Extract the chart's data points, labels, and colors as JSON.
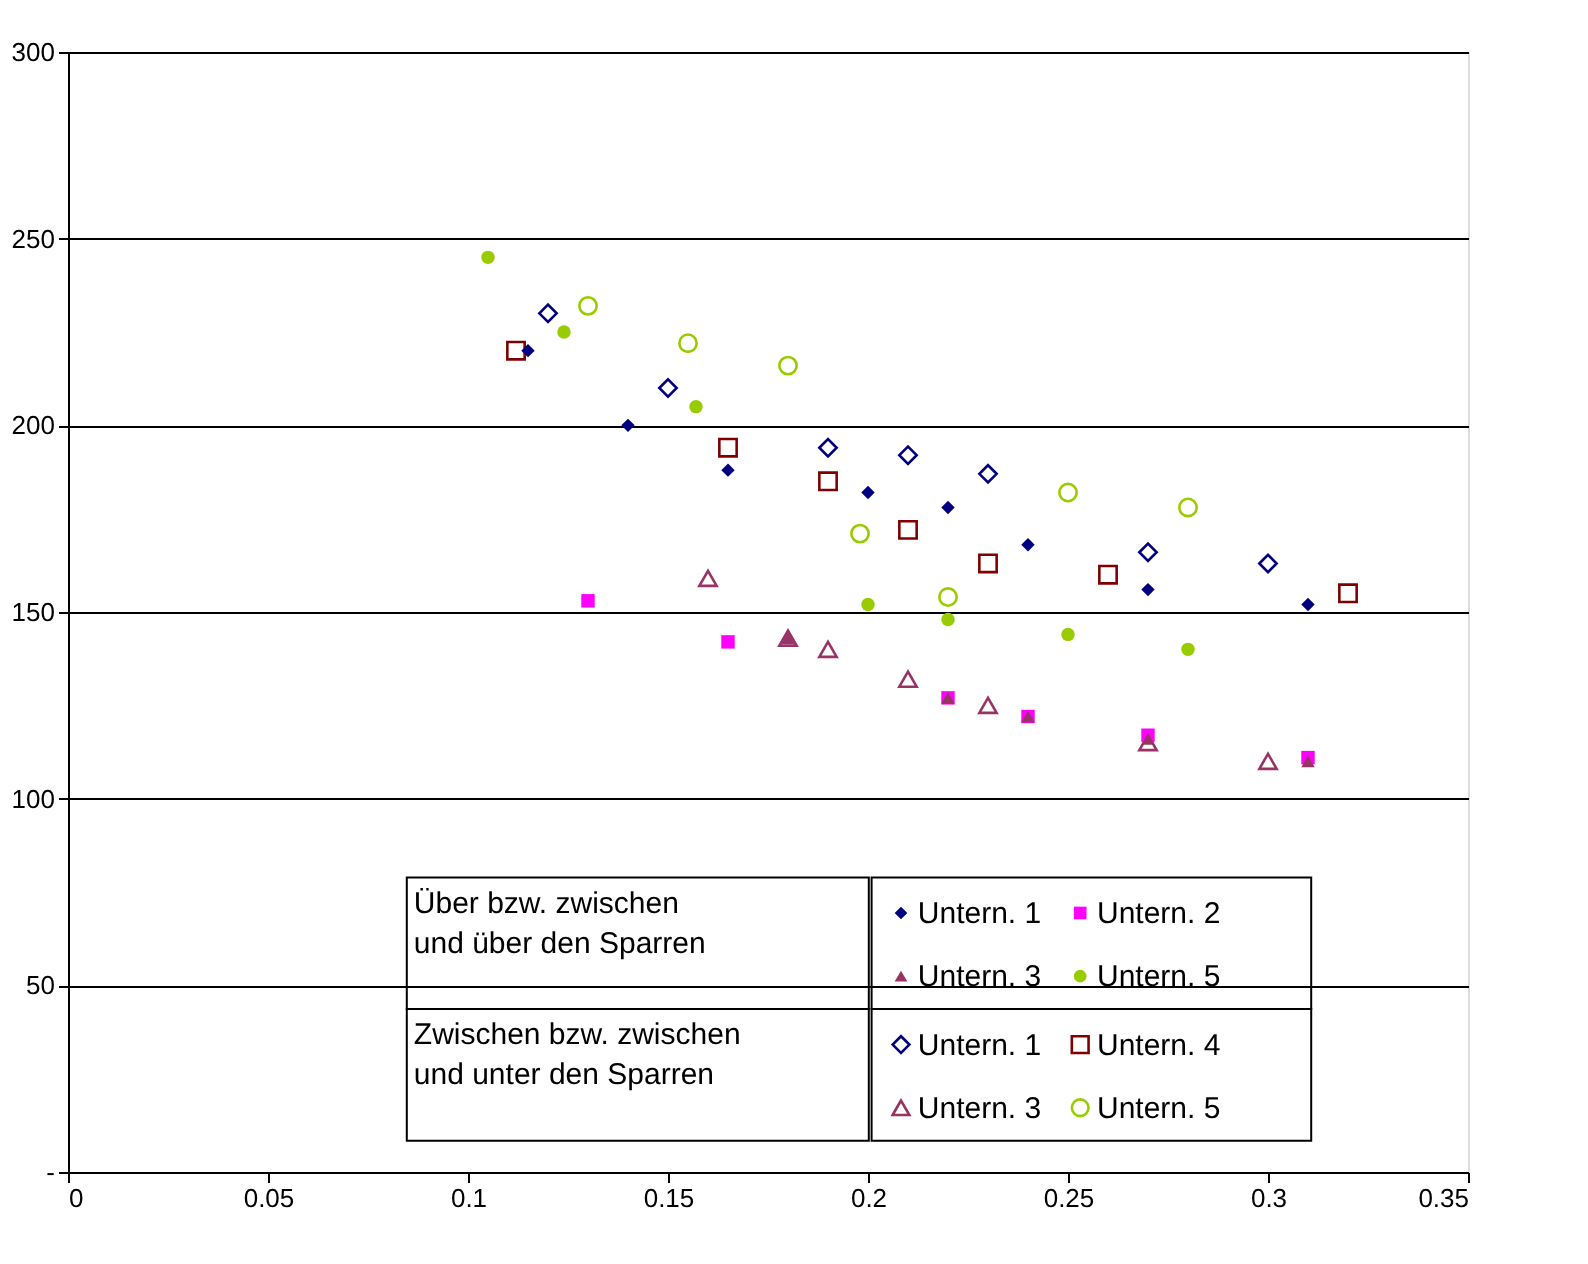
{
  "chart_data": {
    "type": "scatter",
    "xlim": [
      0,
      0.35
    ],
    "xticks": [
      0,
      0.05,
      0.1,
      0.15,
      0.2,
      0.25,
      0.3,
      0.35
    ],
    "ylim": [
      0,
      300
    ],
    "yticks": [
      {
        "value": 0,
        "label": "-"
      },
      50,
      100,
      150,
      200,
      250,
      300
    ],
    "grid": "y",
    "legend": "bottom",
    "annotations": [
      "Über bzw. zwischen\nund über den Sparren",
      "Zwischen bzw. zwischen\nund unter den Sparren"
    ],
    "series": [
      {
        "name": "Untern. 1",
        "color": "#000080",
        "marker": "diamond",
        "x": [
          0.115,
          0.14,
          0.165,
          0.2,
          0.22,
          0.24,
          0.27,
          0.31
        ],
        "values": [
          220,
          200,
          188,
          182,
          178,
          168,
          156,
          152
        ]
      },
      {
        "name": "Untern. 2",
        "color": "#ff00ff",
        "marker": "square",
        "x": [
          0.13,
          0.165,
          0.22,
          0.24,
          0.27,
          0.31
        ],
        "values": [
          153,
          142,
          127,
          122,
          117,
          111
        ]
      },
      {
        "name": "Untern. 3",
        "color": "#993366",
        "marker": "triangle",
        "x": [
          0.18,
          0.22,
          0.24,
          0.27,
          0.31
        ],
        "values": [
          143,
          127,
          122,
          116,
          110
        ]
      },
      {
        "name": "Untern. 5",
        "color": "#99cc00",
        "marker": "circle",
        "x": [
          0.105,
          0.124,
          0.157,
          0.2,
          0.22,
          0.25,
          0.28
        ],
        "values": [
          245,
          225,
          205,
          152,
          148,
          144,
          140
        ]
      },
      {
        "name": "Untern. 1",
        "color": "#000080",
        "marker": "diamond",
        "x": [
          0.12,
          0.15,
          0.19,
          0.21,
          0.23,
          0.27,
          0.3
        ],
        "values": [
          230,
          210,
          194,
          192,
          187,
          166,
          163
        ]
      },
      {
        "name": "Untern. 4",
        "color": "#800000",
        "marker": "square",
        "x": [
          0.112,
          0.165,
          0.19,
          0.21,
          0.23,
          0.26,
          0.32
        ],
        "values": [
          220,
          194,
          185,
          172,
          163,
          160,
          155
        ]
      },
      {
        "name": "Untern. 3",
        "color": "#993366",
        "marker": "triangle",
        "x": [
          0.16,
          0.18,
          0.19,
          0.21,
          0.23,
          0.27,
          0.3
        ],
        "values": [
          159,
          143,
          140,
          132,
          125,
          115,
          110
        ]
      },
      {
        "name": "Untern. 5",
        "color": "#99cc00",
        "marker": "circle",
        "x": [
          0.13,
          0.155,
          0.18,
          0.198,
          0.22,
          0.25,
          0.28
        ],
        "values": [
          232,
          222,
          216,
          171,
          154,
          182,
          178
        ]
      }
    ]
  }
}
